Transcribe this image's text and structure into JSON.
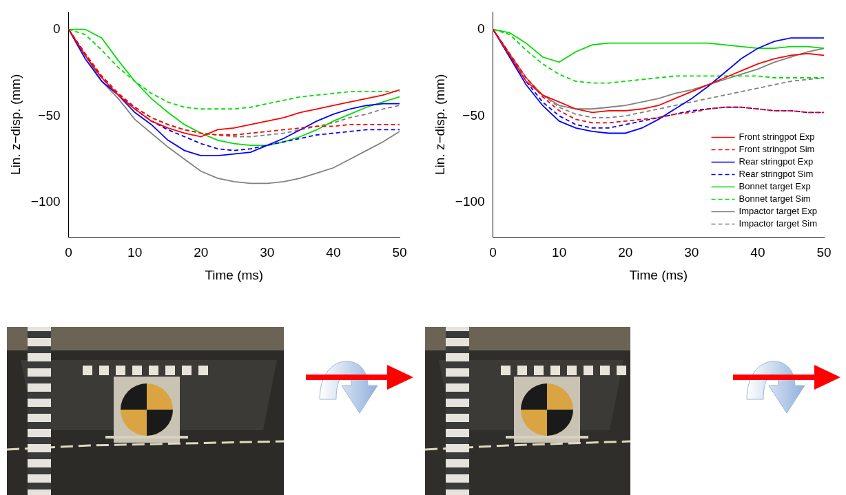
{
  "chart_data": [
    {
      "type": "line",
      "x_label": "Time (ms)",
      "y_label": "Lin. z−disp. (mm)",
      "xlim": [
        0,
        50
      ],
      "xticks": [
        0,
        10,
        20,
        30,
        40,
        50
      ],
      "ylim": [
        -120,
        10
      ],
      "yticks": [
        {
          "value": -100,
          "label": "−100"
        },
        {
          "value": -50,
          "label": "−50"
        },
        0
      ],
      "grid": false,
      "x": [
        0,
        2.5,
        5,
        7.5,
        10,
        12.5,
        15,
        17.5,
        20,
        22.5,
        25,
        27.5,
        30,
        32.5,
        35,
        37.5,
        40,
        42.5,
        45,
        47.5,
        50
      ],
      "series": [
        {
          "color": "#ff0000",
          "line_style": "solid",
          "values": [
            0,
            -15,
            -28,
            -38,
            -46,
            -53,
            -57,
            -60,
            -62,
            -58,
            -57,
            -55,
            -53,
            -51,
            -48,
            -46,
            -44,
            -42,
            -40,
            -38,
            -35
          ]
        },
        {
          "color": "#ff0000",
          "line_style": "dashed",
          "values": [
            0,
            -14,
            -27,
            -37,
            -45,
            -51,
            -55,
            -58,
            -60,
            -61,
            -61,
            -60,
            -59,
            -58,
            -57,
            -56,
            -56,
            -55,
            -55,
            -55,
            -55
          ]
        },
        {
          "color": "#0000ff",
          "line_style": "solid",
          "values": [
            0,
            -17,
            -30,
            -38,
            -48,
            -55,
            -64,
            -70,
            -73,
            -73,
            -72,
            -71,
            -67,
            -63,
            -58,
            -53,
            -49,
            -46,
            -44,
            -43,
            -43
          ]
        },
        {
          "color": "#0000ff",
          "line_style": "dashed",
          "values": [
            0,
            -15,
            -28,
            -38,
            -46,
            -53,
            -58,
            -62,
            -66,
            -69,
            -70,
            -69,
            -67,
            -65,
            -63,
            -61,
            -60,
            -59,
            -58,
            -58,
            -58
          ]
        },
        {
          "color": "#00dd00",
          "line_style": "solid",
          "values": [
            0,
            0,
            -5,
            -18,
            -30,
            -40,
            -48,
            -55,
            -60,
            -64,
            -66,
            -67,
            -67,
            -65,
            -62,
            -58,
            -53,
            -49,
            -45,
            -42,
            -39
          ]
        },
        {
          "color": "#00dd00",
          "line_style": "dashed",
          "values": [
            0,
            -3,
            -12,
            -22,
            -30,
            -37,
            -42,
            -45,
            -46,
            -46,
            -46,
            -45,
            -43,
            -41,
            -39,
            -38,
            -37,
            -36,
            -36,
            -36,
            -36
          ]
        },
        {
          "color": "#808080",
          "line_style": "solid",
          "values": [
            0,
            -15,
            -30,
            -40,
            -52,
            -60,
            -68,
            -75,
            -82,
            -86,
            -88,
            -89,
            -89,
            -88,
            -86,
            -83,
            -80,
            -75,
            -70,
            -65,
            -59
          ]
        },
        {
          "color": "#808080",
          "line_style": "dashed",
          "values": [
            0,
            -14,
            -27,
            -37,
            -45,
            -51,
            -55,
            -58,
            -60,
            -61,
            -62,
            -62,
            -61,
            -60,
            -58,
            -56,
            -54,
            -51,
            -49,
            -46,
            -44
          ]
        }
      ]
    },
    {
      "type": "line",
      "x_label": "Time (ms)",
      "y_label": "Lin. z−disp. (mm)",
      "xlim": [
        0,
        50
      ],
      "xticks": [
        0,
        10,
        20,
        30,
        40,
        50
      ],
      "ylim": [
        -120,
        10
      ],
      "yticks": [
        {
          "value": -100,
          "label": "−100"
        },
        {
          "value": -50,
          "label": "−50"
        },
        0
      ],
      "grid": false,
      "legend": "lower right",
      "x": [
        0,
        2.5,
        5,
        7.5,
        10,
        12.5,
        15,
        17.5,
        20,
        22.5,
        25,
        27.5,
        30,
        32.5,
        35,
        37.5,
        40,
        42.5,
        45,
        47.5,
        50
      ],
      "series": [
        {
          "name": "Front stringpot Exp",
          "color": "#ff0000",
          "line_style": "solid",
          "values": [
            0,
            -15,
            -30,
            -38,
            -42,
            -46,
            -48,
            -47,
            -47,
            -46,
            -44,
            -40,
            -36,
            -32,
            -28,
            -24,
            -20,
            -17,
            -15,
            -14,
            -15
          ]
        },
        {
          "name": "Front stringpot Sim",
          "color": "#ff0000",
          "line_style": "dashed",
          "values": [
            0,
            -14,
            -28,
            -39,
            -47,
            -52,
            -54,
            -54,
            -53,
            -52,
            -51,
            -49,
            -48,
            -46,
            -45,
            -45,
            -46,
            -47,
            -47,
            -48,
            -48
          ]
        },
        {
          "name": "Rear stringpot Exp",
          "color": "#0000ff",
          "line_style": "solid",
          "values": [
            0,
            -16,
            -32,
            -44,
            -53,
            -57,
            -59,
            -60,
            -60,
            -57,
            -52,
            -46,
            -40,
            -33,
            -25,
            -17,
            -11,
            -7,
            -5,
            -5,
            -5
          ]
        },
        {
          "name": "Rear stringpot Sim",
          "color": "#0000ff",
          "line_style": "dashed",
          "values": [
            0,
            -15,
            -30,
            -42,
            -50,
            -55,
            -57,
            -57,
            -55,
            -53,
            -51,
            -49,
            -47,
            -46,
            -45,
            -45,
            -46,
            -47,
            -47,
            -48,
            -48
          ]
        },
        {
          "name": "Bonnet target Exp",
          "color": "#00dd00",
          "line_style": "solid",
          "values": [
            0,
            -2,
            -8,
            -16,
            -19,
            -13,
            -9,
            -8,
            -8,
            -8,
            -8,
            -8,
            -8,
            -8,
            -9,
            -10,
            -11,
            -11,
            -10,
            -10,
            -11
          ]
        },
        {
          "name": "Bonnet target Sim",
          "color": "#00dd00",
          "line_style": "dashed",
          "values": [
            0,
            -3,
            -12,
            -20,
            -26,
            -30,
            -31,
            -31,
            -30,
            -29,
            -28,
            -27,
            -27,
            -27,
            -27,
            -27,
            -27,
            -28,
            -28,
            -28,
            -28
          ]
        },
        {
          "name": "Impactor target Exp",
          "color": "#808080",
          "line_style": "solid",
          "values": [
            0,
            -14,
            -28,
            -38,
            -44,
            -46,
            -46,
            -45,
            -44,
            -42,
            -40,
            -37,
            -35,
            -32,
            -29,
            -26,
            -23,
            -19,
            -16,
            -13,
            -11
          ]
        },
        {
          "name": "Impactor target Sim",
          "color": "#808080",
          "line_style": "dashed",
          "values": [
            0,
            -14,
            -28,
            -38,
            -45,
            -49,
            -51,
            -51,
            -50,
            -48,
            -46,
            -44,
            -42,
            -40,
            -38,
            -36,
            -34,
            -32,
            -30,
            -29,
            -28
          ]
        }
      ]
    }
  ]
}
